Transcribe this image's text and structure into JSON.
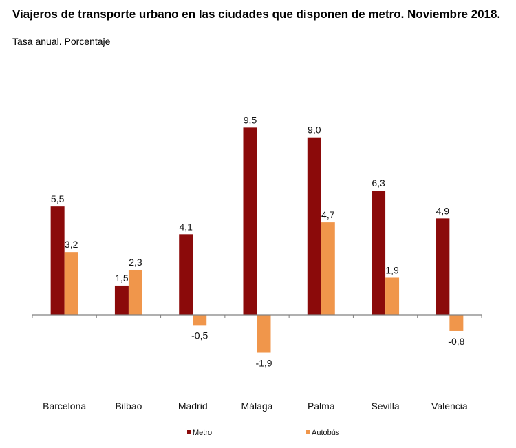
{
  "chart_data": {
    "type": "bar",
    "title": "Viajeros de transporte urbano en las ciudades que disponen de metro. Noviembre 2018.",
    "subtitle": "Tasa anual. Porcentaje",
    "xlabel": "",
    "ylabel": "",
    "categories": [
      "Barcelona",
      "Bilbao",
      "Madrid",
      "Málaga",
      "Palma",
      "Sevilla",
      "Valencia"
    ],
    "series": [
      {
        "name": "Metro",
        "color": "#8B0A0A",
        "values": [
          5.5,
          1.5,
          4.1,
          9.5,
          9.0,
          6.3,
          4.9
        ],
        "labels": [
          "5,5",
          "1,5",
          "4,1",
          "9,5",
          "9,0",
          "6,3",
          "4,9"
        ]
      },
      {
        "name": "Autobús",
        "color": "#F0964B",
        "values": [
          3.2,
          2.3,
          -0.5,
          -1.9,
          4.7,
          1.9,
          -0.8
        ],
        "labels": [
          "3,2",
          "2,3",
          "-0,5",
          "-1,9",
          "4,7",
          "1,9",
          "-0,8"
        ]
      }
    ],
    "ylim": [
      -3.5,
      11
    ],
    "grid": false,
    "legend": "bottom"
  }
}
